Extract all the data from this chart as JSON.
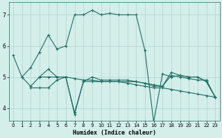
{
  "xlabel": "Humidex (Indice chaleur)",
  "ylabel": "",
  "xlim": [
    -0.5,
    23.5
  ],
  "ylim": [
    3.6,
    7.4
  ],
  "bg_color": "#d4eeea",
  "grid_color": "#b0d4ce",
  "line_color": "#1a6b60",
  "xticks": [
    0,
    1,
    2,
    3,
    4,
    5,
    6,
    7,
    8,
    9,
    10,
    11,
    12,
    13,
    14,
    15,
    16,
    17,
    18,
    19,
    20,
    21,
    22,
    23
  ],
  "yticks": [
    4,
    5,
    6,
    7
  ],
  "series": [
    {
      "x": [
        0,
        1,
        2,
        3,
        4,
        5,
        6,
        7,
        8,
        9,
        10,
        11,
        12,
        13,
        14,
        15,
        16,
        17,
        18,
        19,
        20,
        21,
        22,
        23
      ],
      "y": [
        5.7,
        5.0,
        5.3,
        5.8,
        6.35,
        5.9,
        6.0,
        7.0,
        7.0,
        7.15,
        7.0,
        7.05,
        7.0,
        7.0,
        7.0,
        5.85,
        3.55,
        5.1,
        5.0,
        5.05,
        5.0,
        5.0,
        4.85,
        4.35
      ]
    },
    {
      "x": [
        1,
        2,
        3,
        4,
        5,
        6,
        7,
        8,
        9,
        10,
        11,
        12,
        13,
        14,
        15,
        16,
        17,
        18,
        19,
        20,
        21,
        22,
        23
      ],
      "y": [
        5.0,
        4.7,
        5.0,
        5.25,
        5.0,
        5.0,
        3.8,
        4.85,
        5.0,
        4.9,
        4.9,
        4.9,
        4.9,
        4.85,
        4.8,
        4.7,
        4.7,
        5.15,
        5.05,
        5.0,
        5.0,
        4.85,
        4.35
      ]
    },
    {
      "x": [
        2,
        3,
        4,
        5,
        6,
        7,
        8,
        9,
        10,
        11,
        12,
        13,
        14,
        15,
        16,
        17,
        18,
        19,
        20,
        21,
        22,
        23
      ],
      "y": [
        4.65,
        4.65,
        4.65,
        4.9,
        5.0,
        3.85,
        4.85,
        4.85,
        4.85,
        4.85,
        4.85,
        4.8,
        4.75,
        4.7,
        4.65,
        4.65,
        4.6,
        4.55,
        4.5,
        4.45,
        4.4,
        4.35
      ]
    },
    {
      "x": [
        3,
        4,
        5,
        6,
        7,
        8,
        9,
        10,
        11,
        12,
        13,
        14,
        15,
        16,
        17,
        18,
        19,
        20,
        21,
        22,
        23
      ],
      "y": [
        5.0,
        5.0,
        5.0,
        5.0,
        4.95,
        4.9,
        4.9,
        4.85,
        4.85,
        4.85,
        4.85,
        4.85,
        4.8,
        4.75,
        4.7,
        5.05,
        5.0,
        4.95,
        4.9,
        4.9,
        4.35
      ]
    }
  ]
}
